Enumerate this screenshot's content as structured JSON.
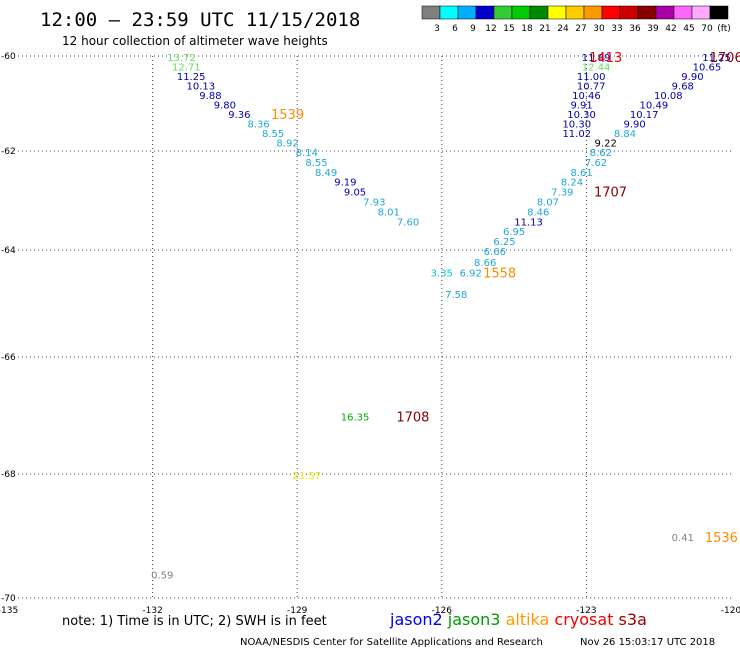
{
  "header": {
    "title": "12:00 — 23:59 UTC 11/15/2018",
    "subtitle": "12 hour collection of altimeter wave heights"
  },
  "colorbar": {
    "colors": [
      "#808080",
      "#00ffff",
      "#00b0ff",
      "#0000cc",
      "#33cc33",
      "#00cc00",
      "#008800",
      "#ffff00",
      "#ffcc00",
      "#ff9900",
      "#ff0000",
      "#cc0000",
      "#880000",
      "#aa00aa",
      "#ff66ff",
      "#ffaaff",
      "#000000"
    ],
    "labels": [
      "3",
      "6",
      "9",
      "12",
      "15",
      "18",
      "21",
      "24",
      "27",
      "30",
      "33",
      "36",
      "39",
      "42",
      "45",
      "70",
      "(ft)"
    ]
  },
  "chart_data": {
    "type": "scatter",
    "title": "12:00 — 23:59 UTC 11/15/2018",
    "subtitle": "12 hour collection of altimeter wave heights",
    "xlabel": "",
    "ylabel": "",
    "xlim": [
      -135,
      -120
    ],
    "ylim": [
      -70,
      -60
    ],
    "x_ticks": [
      -135,
      -132,
      -129,
      -126,
      -123,
      -120
    ],
    "x_tick_labels": [
      "-135",
      "-132",
      "-129",
      "-126",
      "-123",
      "-120"
    ],
    "y_ticks": [
      -60,
      -62,
      -64,
      -66,
      -68,
      -70
    ],
    "y_tick_labels": [
      "-60",
      "-62",
      "-64",
      "-66",
      "-68",
      "-70"
    ],
    "grid": true,
    "points": [
      {
        "x": -131.4,
        "y": -60.02,
        "label": "13.72",
        "color": "#66dd66"
      },
      {
        "x": -131.3,
        "y": -60.22,
        "label": "12.71",
        "color": "#66dd66"
      },
      {
        "x": -131.2,
        "y": -60.42,
        "label": "11.25",
        "color": "#0000aa"
      },
      {
        "x": -131.0,
        "y": -60.62,
        "label": "10.13",
        "color": "#0000aa"
      },
      {
        "x": -130.8,
        "y": -60.82,
        "label": "9.88",
        "color": "#0000aa"
      },
      {
        "x": -130.5,
        "y": -61.02,
        "label": "9.80",
        "color": "#0000aa"
      },
      {
        "x": -130.2,
        "y": -61.22,
        "label": "9.36",
        "color": "#0000aa"
      },
      {
        "x": -129.8,
        "y": -61.42,
        "label": "8.36",
        "color": "#1fa8d8"
      },
      {
        "x": -129.5,
        "y": -61.62,
        "label": "8.55",
        "color": "#1fa8d8"
      },
      {
        "x": -129.2,
        "y": -61.82,
        "label": "8.92",
        "color": "#1fa8d8"
      },
      {
        "x": -128.8,
        "y": -62.02,
        "label": "8.14",
        "color": "#1fa8d8"
      },
      {
        "x": -128.6,
        "y": -62.22,
        "label": "8.55",
        "color": "#1fa8d8"
      },
      {
        "x": -128.4,
        "y": -62.42,
        "label": "8.49",
        "color": "#1fa8d8"
      },
      {
        "x": -128.0,
        "y": -62.62,
        "label": "9.19",
        "color": "#0000aa"
      },
      {
        "x": -127.8,
        "y": -62.82,
        "label": "9.05",
        "color": "#0000aa"
      },
      {
        "x": -127.4,
        "y": -63.02,
        "label": "7.93",
        "color": "#1fa8d8"
      },
      {
        "x": -127.1,
        "y": -63.22,
        "label": "8.01",
        "color": "#1fa8d8"
      },
      {
        "x": -126.7,
        "y": -63.42,
        "label": "7.60",
        "color": "#1fa8d8"
      },
      {
        "x": -122.8,
        "y": -60.02,
        "label": "11.89",
        "color": "#0000aa"
      },
      {
        "x": -122.8,
        "y": -60.22,
        "label": "12.44",
        "color": "#66dd66"
      },
      {
        "x": -122.9,
        "y": -60.42,
        "label": "11.00",
        "color": "#0000aa"
      },
      {
        "x": -122.9,
        "y": -60.62,
        "label": "10.77",
        "color": "#0000aa"
      },
      {
        "x": -123.0,
        "y": -60.82,
        "label": "10.46",
        "color": "#0000aa"
      },
      {
        "x": -123.1,
        "y": -61.02,
        "label": "9.91",
        "color": "#0000aa"
      },
      {
        "x": -123.1,
        "y": -61.22,
        "label": "10.30",
        "color": "#0000aa"
      },
      {
        "x": -123.2,
        "y": -61.42,
        "label": "10.30",
        "color": "#0000aa"
      },
      {
        "x": -123.2,
        "y": -61.62,
        "label": "11.02",
        "color": "#0000aa"
      },
      {
        "x": -120.3,
        "y": -60.02,
        "label": "11.25",
        "color": "#0000aa"
      },
      {
        "x": -120.5,
        "y": -60.22,
        "label": "10.65",
        "color": "#0000aa"
      },
      {
        "x": -120.8,
        "y": -60.42,
        "label": "9.90",
        "color": "#0000aa"
      },
      {
        "x": -121.0,
        "y": -60.62,
        "label": "9.68",
        "color": "#0000aa"
      },
      {
        "x": -121.3,
        "y": -60.82,
        "label": "10.08",
        "color": "#0000aa"
      },
      {
        "x": -121.6,
        "y": -61.02,
        "label": "10.49",
        "color": "#0000aa"
      },
      {
        "x": -121.8,
        "y": -61.22,
        "label": "10.17",
        "color": "#0000aa"
      },
      {
        "x": -122.0,
        "y": -61.42,
        "label": "9.90",
        "color": "#0000aa"
      },
      {
        "x": -122.2,
        "y": -61.62,
        "label": "8.84",
        "color": "#1fa8d8"
      },
      {
        "x": -122.6,
        "y": -61.82,
        "label": "9.22",
        "color": "#000000"
      },
      {
        "x": -122.7,
        "y": -62.02,
        "label": "8.62",
        "color": "#1fa8d8"
      },
      {
        "x": -122.8,
        "y": -62.22,
        "label": "7.62",
        "color": "#1fa8d8"
      },
      {
        "x": -123.1,
        "y": -62.42,
        "label": "8.61",
        "color": "#1fa8d8"
      },
      {
        "x": -123.3,
        "y": -62.62,
        "label": "8.24",
        "color": "#1fa8d8"
      },
      {
        "x": -123.5,
        "y": -62.82,
        "label": "7.39",
        "color": "#1fa8d8"
      },
      {
        "x": -123.8,
        "y": -63.02,
        "label": "8.07",
        "color": "#1fa8d8"
      },
      {
        "x": -124.0,
        "y": -63.22,
        "label": "8.46",
        "color": "#1fa8d8"
      },
      {
        "x": -124.2,
        "y": -63.42,
        "label": "11.13",
        "color": "#0000aa"
      },
      {
        "x": -124.5,
        "y": -63.62,
        "label": "6.95",
        "color": "#1fa8d8"
      },
      {
        "x": -124.7,
        "y": -63.82,
        "label": "6.25",
        "color": "#1fa8d8"
      },
      {
        "x": -124.9,
        "y": -64.02,
        "label": "6.66",
        "color": "#1fa8d8"
      },
      {
        "x": -125.1,
        "y": -64.22,
        "label": "8.66",
        "color": "#1fa8d8"
      },
      {
        "x": -125.4,
        "y": -64.42,
        "label": "6.92",
        "color": "#1fa8d8"
      },
      {
        "x": -126.0,
        "y": -64.42,
        "label": "3.35",
        "color": "#00c8e0"
      },
      {
        "x": -125.7,
        "y": -64.82,
        "label": "7.58",
        "color": "#1fa8d8"
      },
      {
        "x": -127.8,
        "y": -67.02,
        "label": "16.35",
        "color": "#00aa00"
      },
      {
        "x": -128.8,
        "y": -68.02,
        "label": "21.57",
        "color": "#e8e800"
      },
      {
        "x": -121.0,
        "y": -69.02,
        "label": "0.41",
        "color": "#808080"
      },
      {
        "x": -131.8,
        "y": -69.62,
        "label": "0.59",
        "color": "#808080"
      }
    ],
    "time_labels": [
      {
        "x": -129.2,
        "y": -61.22,
        "label": "1539",
        "color": "#ff8c00"
      },
      {
        "x": -122.6,
        "y": -60.02,
        "label": "1413",
        "color": "#ee0000"
      },
      {
        "x": -120.1,
        "y": -60.02,
        "label": "1706",
        "color": "#880000"
      },
      {
        "x": -122.5,
        "y": -62.82,
        "label": "1707",
        "color": "#880000"
      },
      {
        "x": -124.8,
        "y": -64.42,
        "label": "1558",
        "color": "#ff8c00"
      },
      {
        "x": -126.6,
        "y": -67.02,
        "label": "1708",
        "color": "#880000"
      },
      {
        "x": -120.2,
        "y": -69.02,
        "label": "1536",
        "color": "#ff8c00"
      }
    ]
  },
  "note": "note: 1) Time is in UTC; 2) SWH is in feet",
  "legend": [
    {
      "name": "jason2",
      "color": "#0000ee"
    },
    {
      "name": "jason3",
      "color": "#009900"
    },
    {
      "name": "altika",
      "color": "#ff9900"
    },
    {
      "name": "cryosat",
      "color": "#ee0000"
    },
    {
      "name": "s3a",
      "color": "#990000"
    }
  ],
  "footer": {
    "center": "NOAA/NESDIS Center for Satellite Applications and Research",
    "date": "Nov 26 15:03:17 UTC 2018"
  }
}
